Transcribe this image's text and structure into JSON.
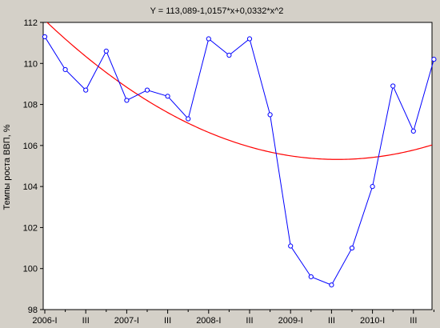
{
  "chart_data": {
    "type": "line",
    "title": "Y = 113,089-1,0157*x+0,0332*x^2",
    "xlabel": "",
    "ylabel": "Темпы роста ВВП, %",
    "ylim": [
      98,
      112
    ],
    "yticks": [
      "98",
      "100",
      "102",
      "104",
      "106",
      "108",
      "110",
      "112"
    ],
    "x_tick_labels": [
      "2006-I",
      "III",
      "2007-I",
      "III",
      "2008-I",
      "III",
      "2009-I",
      "III",
      "2010-I",
      "III"
    ],
    "categories": [
      "2006-I",
      "2006-II",
      "2006-III",
      "2006-IV",
      "2007-I",
      "2007-II",
      "2007-III",
      "2007-IV",
      "2008-I",
      "2008-II",
      "2008-III",
      "2008-IV",
      "2009-I",
      "2009-II",
      "2009-III",
      "2009-IV",
      "2010-I",
      "2010-II",
      "2010-III",
      "2010-IV"
    ],
    "series": [
      {
        "values": [
          111.3,
          109.7,
          108.7,
          110.6,
          108.2,
          108.7,
          108.4,
          107.3,
          111.2,
          110.4,
          111.2,
          107.5,
          101.1,
          99.6,
          99.2,
          101.0,
          104.0,
          108.9,
          106.7,
          110.2
        ],
        "color": "#0000ff",
        "marker": "circle"
      }
    ],
    "trend": {
      "equation": "Y = 113,089-1,0157*x+0,0332*x^2",
      "a": 113.089,
      "b": -1.0157,
      "c": 0.0332,
      "color": "#ff0000"
    },
    "grid": false,
    "legend": "none"
  }
}
